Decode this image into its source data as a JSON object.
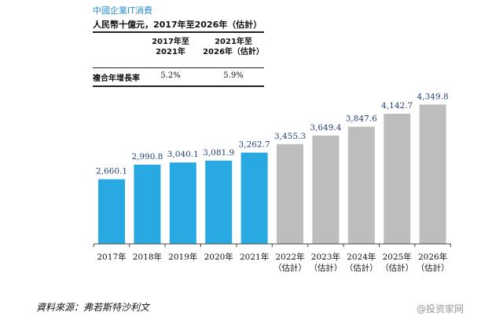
{
  "header": {
    "title": "中國企業IT消費",
    "subtitle": "人民幣十億元，2017年至2026年（估計）"
  },
  "cagr_table": {
    "col1_line1": "2017年至",
    "col1_line2": "2021年",
    "col2_line1": "2021年至",
    "col2_line2": "2026年（估計）",
    "row_label": "複合年增長率",
    "col1_value": "5.2%",
    "col2_value": "5.9%"
  },
  "chart_data": {
    "type": "bar",
    "categories": [
      "2017年",
      "2018年",
      "2019年",
      "2020年",
      "2021年",
      "2022年",
      "2023年",
      "2024年",
      "2025年",
      "2026年"
    ],
    "category_sublabels": [
      "",
      "",
      "",
      "",
      "",
      "（估計）",
      "（估計）",
      "（估計）",
      "（估計）",
      "（估計）"
    ],
    "values": [
      2660.1,
      2990.8,
      3040.1,
      3081.9,
      3262.7,
      3455.3,
      3649.4,
      3847.6,
      4142.7,
      4349.8
    ],
    "value_labels": [
      "2,660.1",
      "2,990.8",
      "3,040.1",
      "3,081.9",
      "3,262.7",
      "3,455.3",
      "3,649.4",
      "3,847.6",
      "4,142.7",
      "4,349.8"
    ],
    "actual_color": "#29a9e1",
    "estimate_color": "#bdbdbd",
    "value_label_color": "#1f3f73",
    "ylim": [
      1200,
      4550
    ],
    "grid": false
  },
  "footer": {
    "source": "資料來源：弗若斯特沙利文",
    "watermark": "@投资家网"
  }
}
